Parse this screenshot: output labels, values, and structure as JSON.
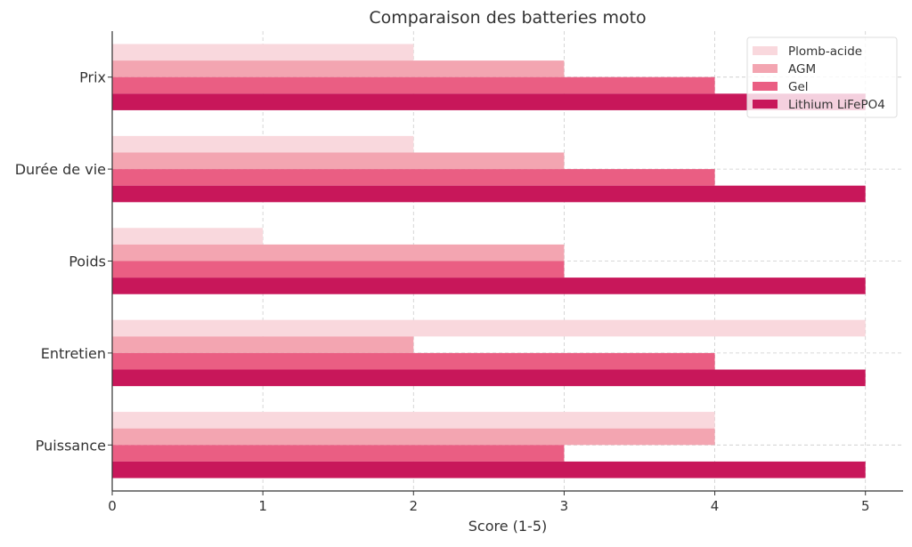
{
  "chart_data": {
    "type": "bar",
    "orientation": "horizontal",
    "title": "Comparaison des batteries moto",
    "xlabel": "Score (1-5)",
    "ylabel": "",
    "categories": [
      "Prix",
      "Durée de vie",
      "Poids",
      "Entretien",
      "Puissance"
    ],
    "xlim": [
      0,
      5.25
    ],
    "xticks": [
      "0",
      "1",
      "2",
      "3",
      "4",
      "5"
    ],
    "grid": true,
    "legend_position": "top-right",
    "series": [
      {
        "name": "Plomb-acide",
        "color": "#f9d8dd",
        "values": [
          2,
          2,
          1,
          5,
          4
        ]
      },
      {
        "name": "AGM",
        "color": "#f3a5b1",
        "values": [
          3,
          3,
          3,
          2,
          4
        ]
      },
      {
        "name": "Gel",
        "color": "#ea5e83",
        "values": [
          4,
          4,
          3,
          4,
          3
        ]
      },
      {
        "name": "Lithium LiFePO4",
        "color": "#c8175a",
        "values": [
          5,
          5,
          5,
          5,
          5
        ]
      }
    ]
  }
}
